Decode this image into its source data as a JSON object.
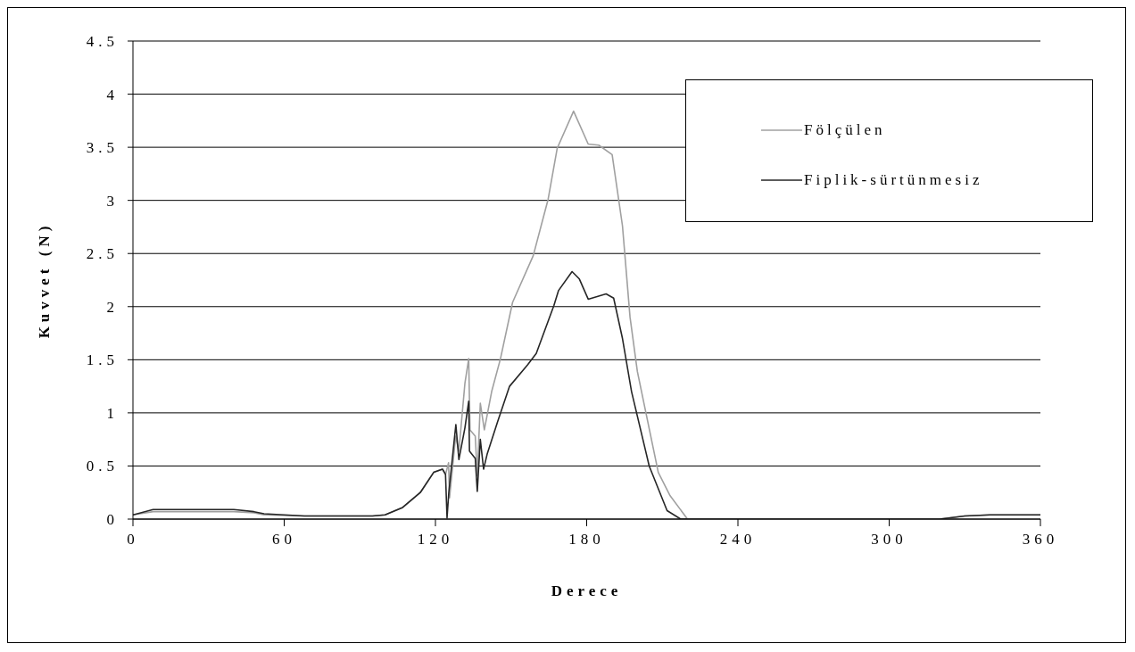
{
  "chart_data": {
    "type": "line",
    "xlabel": "Derece",
    "ylabel": "Kuvvet (N)",
    "xlim": [
      0,
      360
    ],
    "xticks": [
      0,
      60,
      120,
      180,
      240,
      300,
      360
    ],
    "ylim": [
      0,
      4.5
    ],
    "yticks": [
      0,
      0.5,
      1,
      1.5,
      2,
      2.5,
      3,
      3.5,
      4,
      4.5
    ],
    "grid": "y",
    "legend": "top right",
    "marker": "none",
    "line_style": "solid",
    "series": [
      {
        "name": "Fölçülen",
        "color": "#a0a0a0",
        "x": [
          0,
          8,
          40,
          48,
          52,
          68,
          95,
          100,
          107,
          114,
          119.3,
          122.8,
          124,
          125.2,
          125.6,
          128,
          129.3,
          131.7,
          133.2,
          133.7,
          135.8,
          136.6,
          137.8,
          139.4,
          142.3,
          145.8,
          150.6,
          158.8,
          164.7,
          168.3,
          174.8,
          180.6,
          184.8,
          190.1,
          194.2,
          197.2,
          200.1,
          204.2,
          208.4,
          213.1,
          220,
          320,
          330,
          340,
          360
        ],
        "values": [
          0.04,
          0.07,
          0.07,
          0.06,
          0.04,
          0.03,
          0.03,
          0.04,
          0.11,
          0.25,
          0.44,
          0.47,
          0.42,
          0.53,
          0.2,
          0.78,
          0.64,
          1.28,
          1.51,
          0.84,
          0.78,
          0.41,
          1.09,
          0.84,
          1.2,
          1.51,
          2.04,
          2.48,
          3.01,
          3.49,
          3.84,
          3.53,
          3.52,
          3.43,
          2.76,
          1.9,
          1.39,
          0.92,
          0.44,
          0.22,
          0,
          0,
          0.03,
          0.04,
          0.04
        ]
      },
      {
        "name": "Fiplik-sürtünmesiz",
        "color": "#262626",
        "x": [
          0,
          8,
          40,
          48,
          52,
          68,
          95,
          100,
          107,
          114,
          119.3,
          122.8,
          124,
          124.6,
          125.3,
          128.1,
          129.3,
          131.7,
          133.2,
          133.5,
          135.8,
          136.6,
          137.8,
          139.1,
          140.5,
          144.7,
          149.4,
          156.5,
          160,
          167,
          168.8,
          174.2,
          177.1,
          180.6,
          187.7,
          190.7,
          194.2,
          197.8,
          204.8,
          211.9,
          217.3,
          320,
          330,
          340,
          360
        ],
        "values": [
          0.04,
          0.09,
          0.09,
          0.07,
          0.05,
          0.03,
          0.03,
          0.04,
          0.11,
          0.25,
          0.44,
          0.47,
          0.42,
          0.01,
          0.25,
          0.89,
          0.56,
          0.86,
          1.11,
          0.64,
          0.57,
          0.26,
          0.75,
          0.47,
          0.61,
          0.92,
          1.25,
          1.45,
          1.56,
          2.01,
          2.15,
          2.33,
          2.26,
          2.07,
          2.12,
          2.08,
          1.7,
          1.2,
          0.5,
          0.08,
          0,
          0,
          0.03,
          0.04,
          0.04
        ]
      }
    ]
  }
}
